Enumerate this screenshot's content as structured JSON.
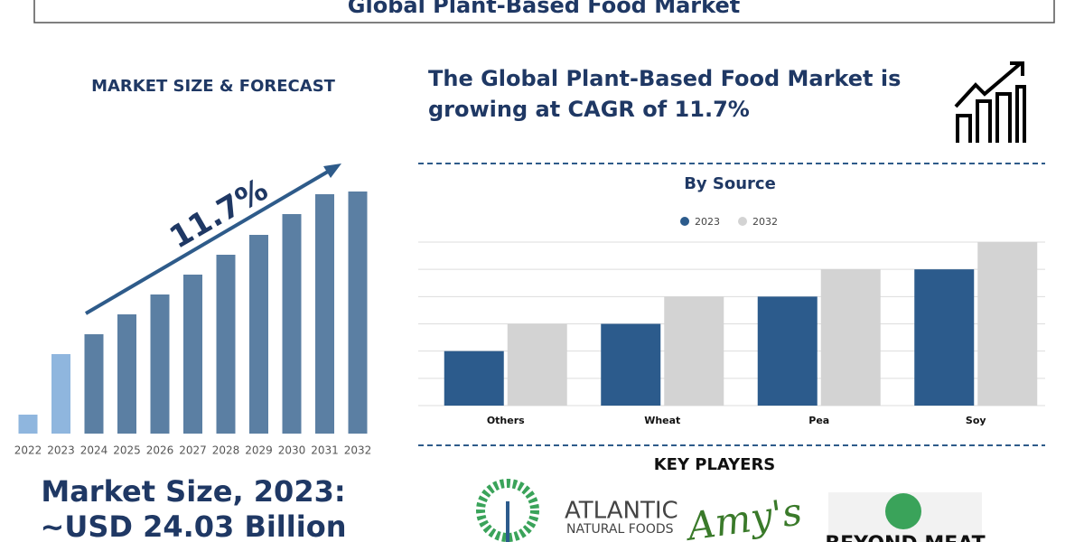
{
  "header": {
    "title": "Global Plant-Based Food Market"
  },
  "left_panel": {
    "heading": "MARKET SIZE & FORECAST",
    "market_size_label": "Market Size, 2023:",
    "market_size_value": "~USD 24.03 Billion"
  },
  "headline": {
    "lines": [
      "The Global Plant-Based Food Market is",
      "growing at CAGR of 11.7%"
    ]
  },
  "key_players": {
    "title": "KEY PLAYERS",
    "logos": [
      "ATLANTIC",
      "NATURAL FOODS",
      "Amy's",
      "BEYOND MEAT"
    ]
  },
  "chart_data": [
    {
      "type": "bar",
      "annotation": "11.7%",
      "categories": [
        "2022",
        "2023",
        "2024",
        "2025",
        "2026",
        "2027",
        "2028",
        "2029",
        "2030",
        "2031",
        "2032"
      ],
      "values": [
        21,
        88,
        110,
        132,
        154,
        176,
        198,
        220,
        243,
        265,
        268
      ],
      "colors": [
        "#8fb6de",
        "#8fb6de",
        "#5b7fa3",
        "#5b7fa3",
        "#5b7fa3",
        "#5b7fa3",
        "#5b7fa3",
        "#5b7fa3",
        "#5b7fa3",
        "#5b7fa3",
        "#5b7fa3"
      ]
    },
    {
      "type": "bar",
      "title": "By Source",
      "categories": [
        "Others",
        "Wheat",
        "Pea",
        "Soy"
      ],
      "series": [
        {
          "name": "2023",
          "color": "#2c5b8c",
          "values": [
            2,
            3,
            4,
            5
          ]
        },
        {
          "name": "2032",
          "color": "#d3d3d3",
          "values": [
            3,
            4,
            5,
            6
          ]
        }
      ],
      "ylim": [
        0,
        6
      ],
      "yticks": [
        0,
        1,
        2,
        3,
        4,
        5,
        6
      ],
      "grid": true
    }
  ]
}
